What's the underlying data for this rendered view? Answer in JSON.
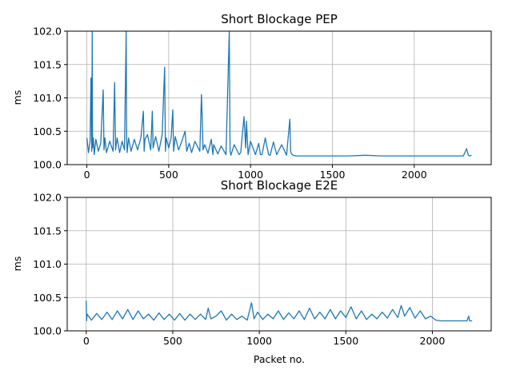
{
  "chart_data": [
    {
      "type": "line",
      "title": "Short Blockage PEP",
      "xlabel": "",
      "ylabel": "ms",
      "xlim": [
        -120,
        2470
      ],
      "ylim": [
        100.0,
        102.0
      ],
      "xticks": [
        0,
        500,
        1000,
        1500,
        2000
      ],
      "xtick_labels": [
        "0",
        "500",
        "1000",
        "1500",
        "2000"
      ],
      "yticks": [
        100.0,
        100.5,
        101.0,
        101.5,
        102.0
      ],
      "ytick_labels": [
        "100.0",
        "100.5",
        "101.0",
        "101.5",
        "102.0"
      ],
      "grid": true,
      "color": "#1f77b4",
      "series": [
        {
          "x": [
            0,
            10,
            20,
            25,
            30,
            33,
            35,
            40,
            45,
            55,
            70,
            85,
            100,
            105,
            110,
            120,
            140,
            160,
            170,
            175,
            185,
            200,
            215,
            230,
            240,
            243,
            246,
            255,
            270,
            290,
            310,
            330,
            345,
            350,
            355,
            370,
            390,
            400,
            405,
            420,
            440,
            460,
            475,
            480,
            485,
            500,
            515,
            525,
            530,
            540,
            560,
            580,
            600,
            610,
            625,
            640,
            660,
            690,
            700,
            705,
            710,
            720,
            740,
            760,
            770,
            775,
            800,
            820,
            850,
            870,
            875,
            880,
            900,
            930,
            940,
            960,
            970,
            975,
            985,
            1000,
            1030,
            1050,
            1060,
            1070,
            1090,
            1110,
            1120,
            1140,
            1160,
            1190,
            1220,
            1240,
            1245,
            1250,
            1260,
            1280,
            1300,
            1400,
            1500,
            1600,
            1700,
            1800,
            1900,
            2000,
            2100,
            2200,
            2300,
            2320,
            2330,
            2340,
            2350
          ],
          "y": [
            100.4,
            100.18,
            100.35,
            101.3,
            100.2,
            102.0,
            100.25,
            100.4,
            100.15,
            100.38,
            100.2,
            100.32,
            101.12,
            100.22,
            100.4,
            100.18,
            100.35,
            100.2,
            101.23,
            100.22,
            100.4,
            100.18,
            100.35,
            100.22,
            102.0,
            100.4,
            100.18,
            100.4,
            100.2,
            100.38,
            100.22,
            100.4,
            100.8,
            100.2,
            100.38,
            100.45,
            100.22,
            100.8,
            100.25,
            100.42,
            100.2,
            100.45,
            101.46,
            100.2,
            100.4,
            100.25,
            100.4,
            100.82,
            100.2,
            100.42,
            100.22,
            100.35,
            100.5,
            100.2,
            100.32,
            100.18,
            100.35,
            100.2,
            101.05,
            100.68,
            100.22,
            100.3,
            100.17,
            100.38,
            100.15,
            100.3,
            100.16,
            100.28,
            100.15,
            102.0,
            100.2,
            100.14,
            100.3,
            100.15,
            100.18,
            100.72,
            100.25,
            100.65,
            100.15,
            100.35,
            100.15,
            100.32,
            100.15,
            100.15,
            100.4,
            100.15,
            100.14,
            100.34,
            100.15,
            100.3,
            100.14,
            100.68,
            100.2,
            100.16,
            100.14,
            100.13,
            100.13,
            100.13,
            100.13,
            100.13,
            100.14,
            100.13,
            100.13,
            100.13,
            100.13,
            100.13,
            100.13,
            100.24,
            100.14,
            100.13,
            100.14
          ]
        }
      ]
    },
    {
      "type": "line",
      "title": "Short Blockage E2E",
      "xlabel": "Packet no.",
      "ylabel": "ms",
      "xlim": [
        -110,
        2340
      ],
      "ylim": [
        100.0,
        102.0
      ],
      "xticks": [
        0,
        500,
        1000,
        1500,
        2000
      ],
      "xtick_labels": [
        "0",
        "500",
        "1000",
        "1500",
        "2000"
      ],
      "yticks": [
        100.0,
        100.5,
        101.0,
        101.5,
        102.0
      ],
      "ytick_labels": [
        "100.0",
        "100.5",
        "101.0",
        "101.5",
        "102.0"
      ],
      "grid": true,
      "color": "#1f77b4",
      "series": [
        {
          "x": [
            0,
            2,
            5,
            30,
            60,
            90,
            120,
            150,
            180,
            210,
            240,
            270,
            300,
            330,
            360,
            390,
            420,
            450,
            480,
            510,
            540,
            570,
            600,
            630,
            660,
            690,
            705,
            720,
            750,
            780,
            810,
            840,
            870,
            900,
            930,
            955,
            970,
            990,
            1020,
            1050,
            1080,
            1110,
            1140,
            1170,
            1200,
            1230,
            1260,
            1290,
            1320,
            1350,
            1380,
            1410,
            1440,
            1470,
            1500,
            1530,
            1560,
            1590,
            1620,
            1650,
            1680,
            1710,
            1740,
            1770,
            1800,
            1820,
            1840,
            1870,
            1900,
            1930,
            1960,
            1990,
            2020,
            2050,
            2100,
            2150,
            2200,
            2210,
            2215,
            2230
          ],
          "y": [
            100.45,
            100.15,
            100.25,
            100.16,
            100.26,
            100.17,
            100.28,
            100.17,
            100.3,
            100.18,
            100.32,
            100.17,
            100.3,
            100.18,
            100.25,
            100.16,
            100.27,
            100.17,
            100.25,
            100.16,
            100.26,
            100.16,
            100.25,
            100.17,
            100.25,
            100.17,
            100.34,
            100.18,
            100.22,
            100.3,
            100.16,
            100.25,
            100.17,
            100.22,
            100.16,
            100.42,
            100.18,
            100.28,
            100.17,
            100.25,
            100.18,
            100.3,
            100.17,
            100.27,
            100.18,
            100.3,
            100.17,
            100.34,
            100.18,
            100.28,
            100.18,
            100.32,
            100.18,
            100.3,
            100.2,
            100.36,
            100.18,
            100.3,
            100.17,
            100.25,
            100.18,
            100.28,
            100.19,
            100.32,
            100.2,
            100.38,
            100.22,
            100.35,
            100.19,
            100.3,
            100.18,
            100.22,
            100.16,
            100.15,
            100.15,
            100.15,
            100.15,
            100.22,
            100.15,
            100.15
          ]
        }
      ]
    }
  ]
}
